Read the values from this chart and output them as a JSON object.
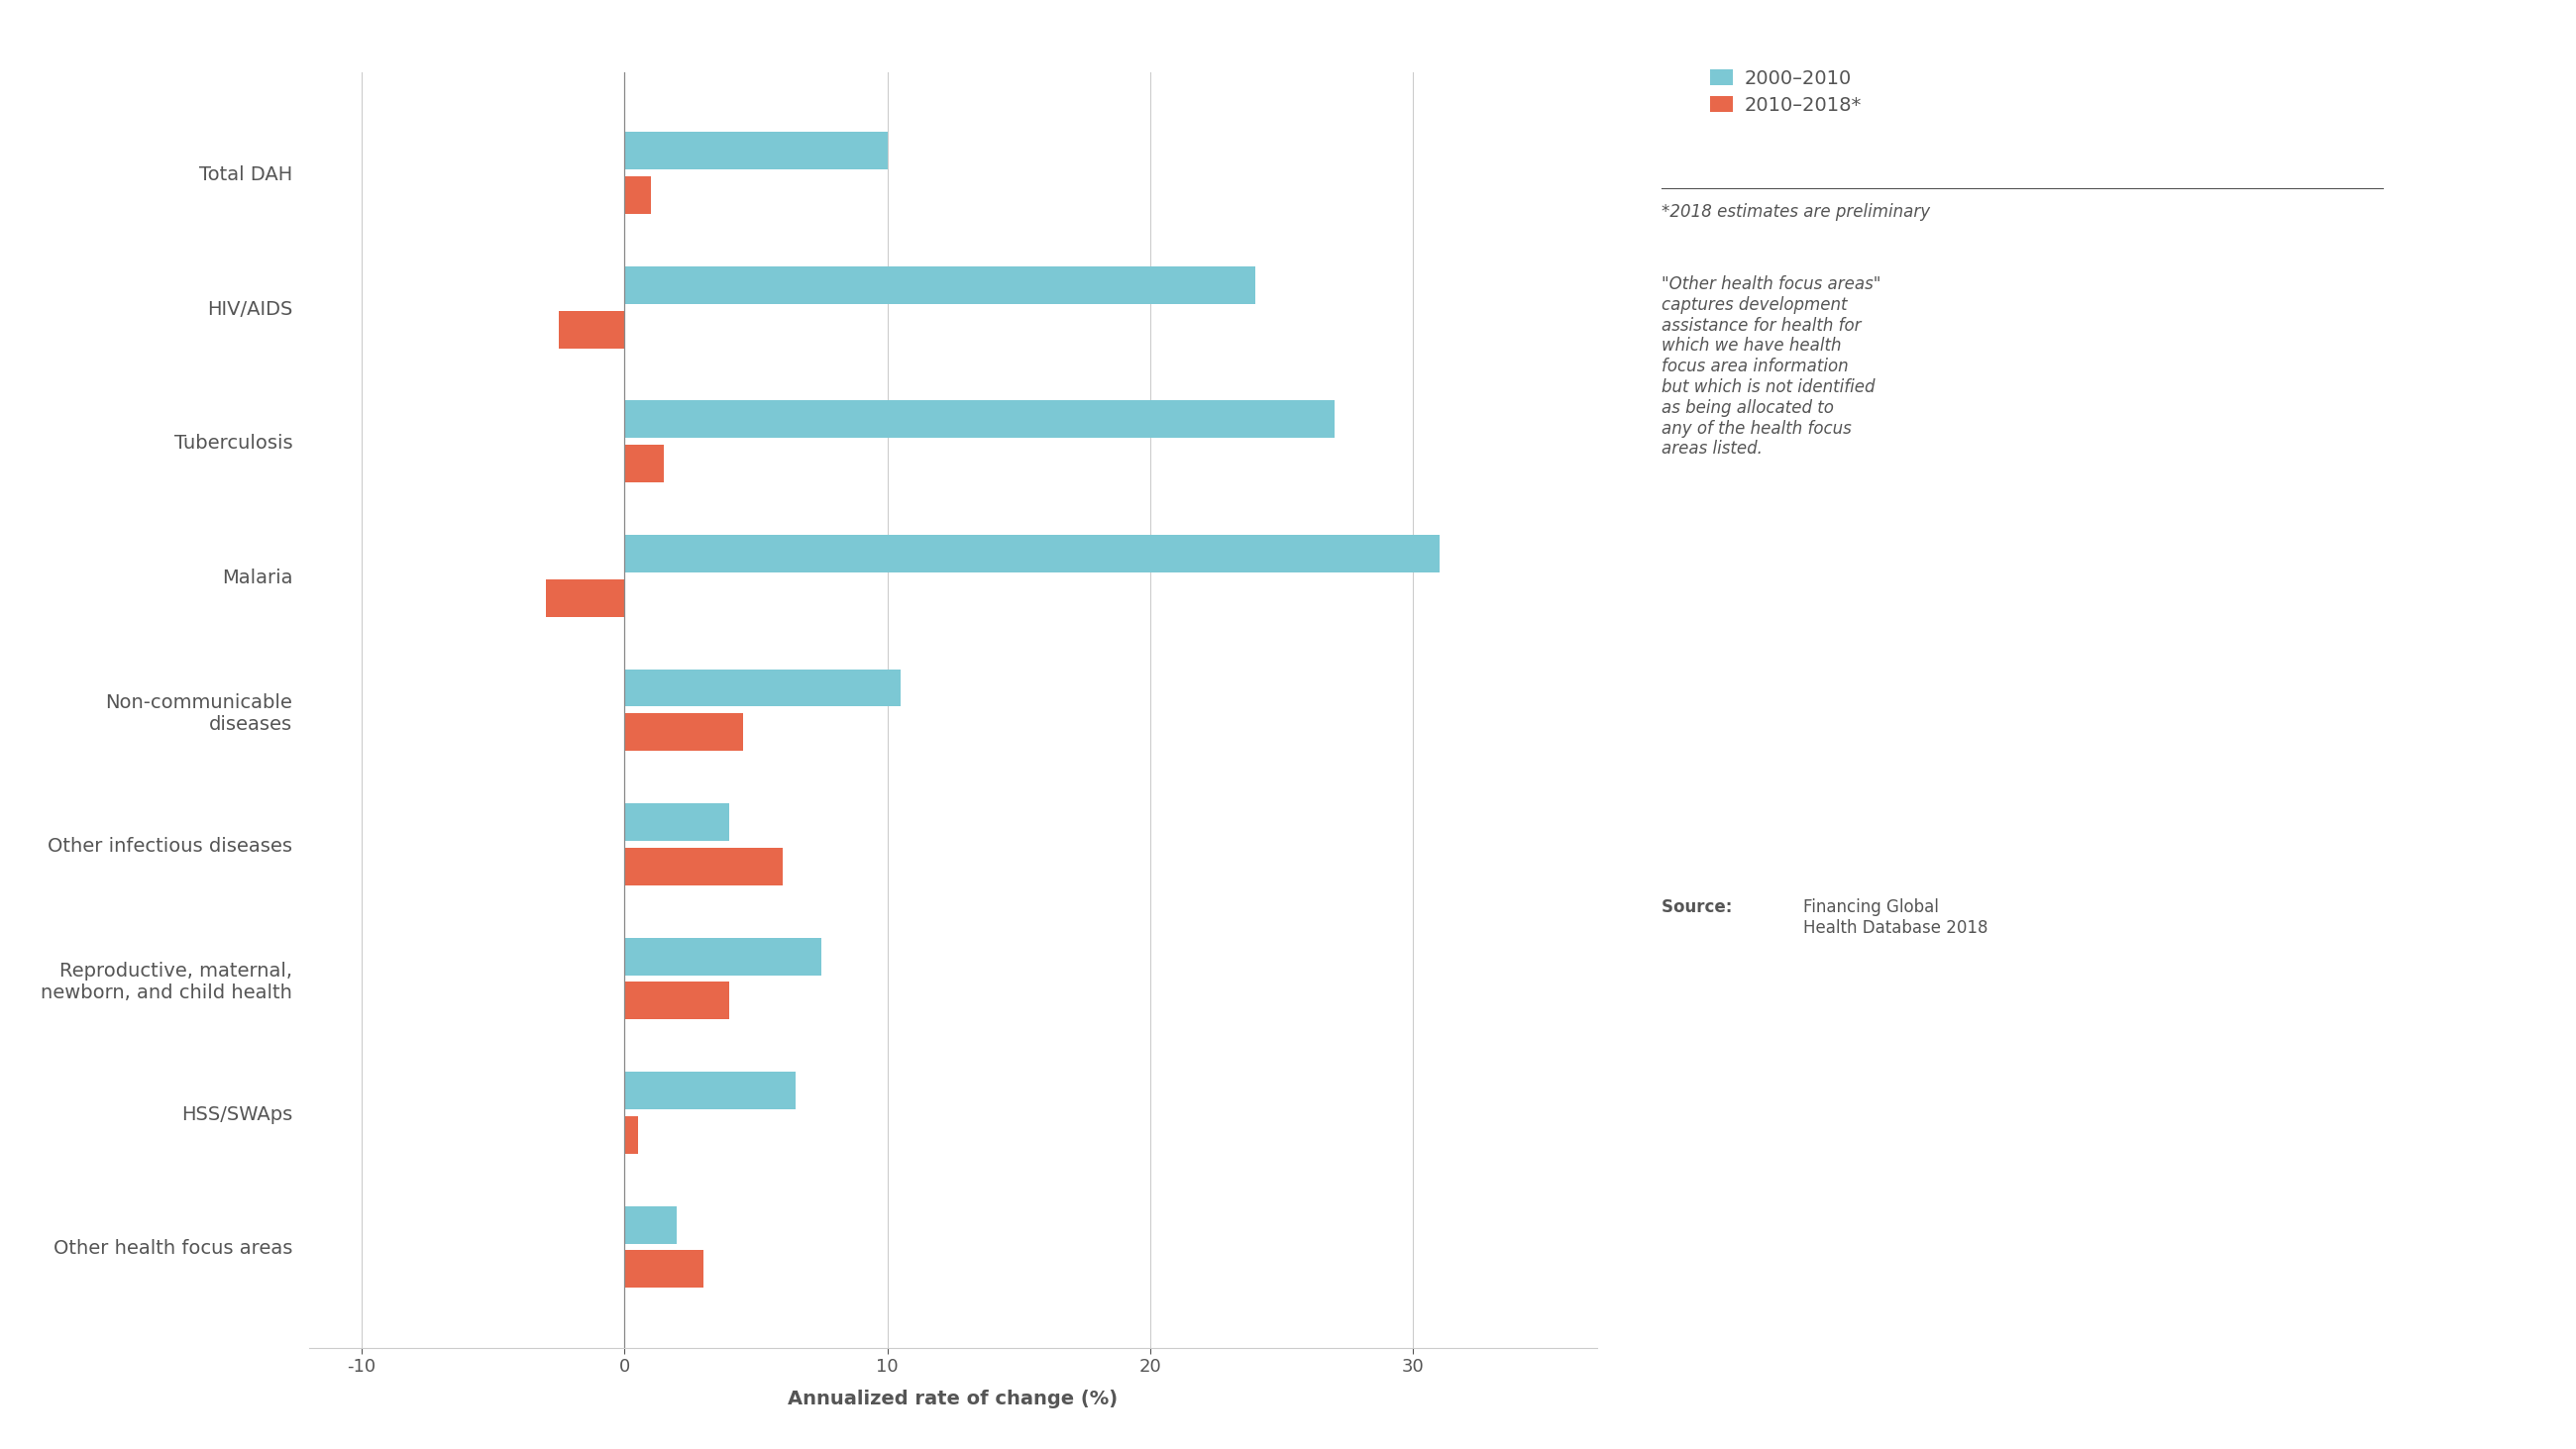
{
  "categories": [
    "Other health focus areas",
    "HSS/SWAps",
    "Reproductive, maternal,\nnewborn, and child health",
    "Other infectious diseases",
    "Non-communicable\ndiseases",
    "Malaria",
    "Tuberculosis",
    "HIV/AIDS",
    "Total DAH"
  ],
  "values_2000_2010": [
    2.0,
    6.5,
    7.5,
    4.0,
    10.5,
    31.0,
    27.0,
    24.0,
    10.0
  ],
  "values_2010_2018": [
    3.0,
    0.5,
    4.0,
    6.0,
    4.5,
    -3.0,
    1.5,
    -2.5,
    1.0
  ],
  "color_2000_2010": "#7cc8d4",
  "color_2010_2018": "#e8674a",
  "legend_labels": [
    "2000–2010",
    "2010–2018*"
  ],
  "xlabel": "Annualized rate of change (%)",
  "xlim": [
    -12,
    37
  ],
  "xticks": [
    -10,
    0,
    10,
    20,
    30
  ],
  "note_asterisk": "*2018 estimates are preliminary",
  "note_other": "\"Other health focus areas\"\ncaptures development\nassistance for health for\nwhich we have health\nfocus area information\nbut which is not identified\nas being allocated to\nany of the health focus\nareas listed.",
  "source_bold": "Source: ",
  "source_regular": "Financing Global\nHealth Database 2018",
  "background_color": "#ffffff",
  "bar_height": 0.28,
  "bar_gap": 0.05,
  "zero_line_color": "#888888",
  "grid_color": "#cccccc",
  "text_color": "#555555",
  "label_fontsize": 14,
  "tick_fontsize": 13,
  "legend_fontsize": 14,
  "annotation_fontsize": 12
}
